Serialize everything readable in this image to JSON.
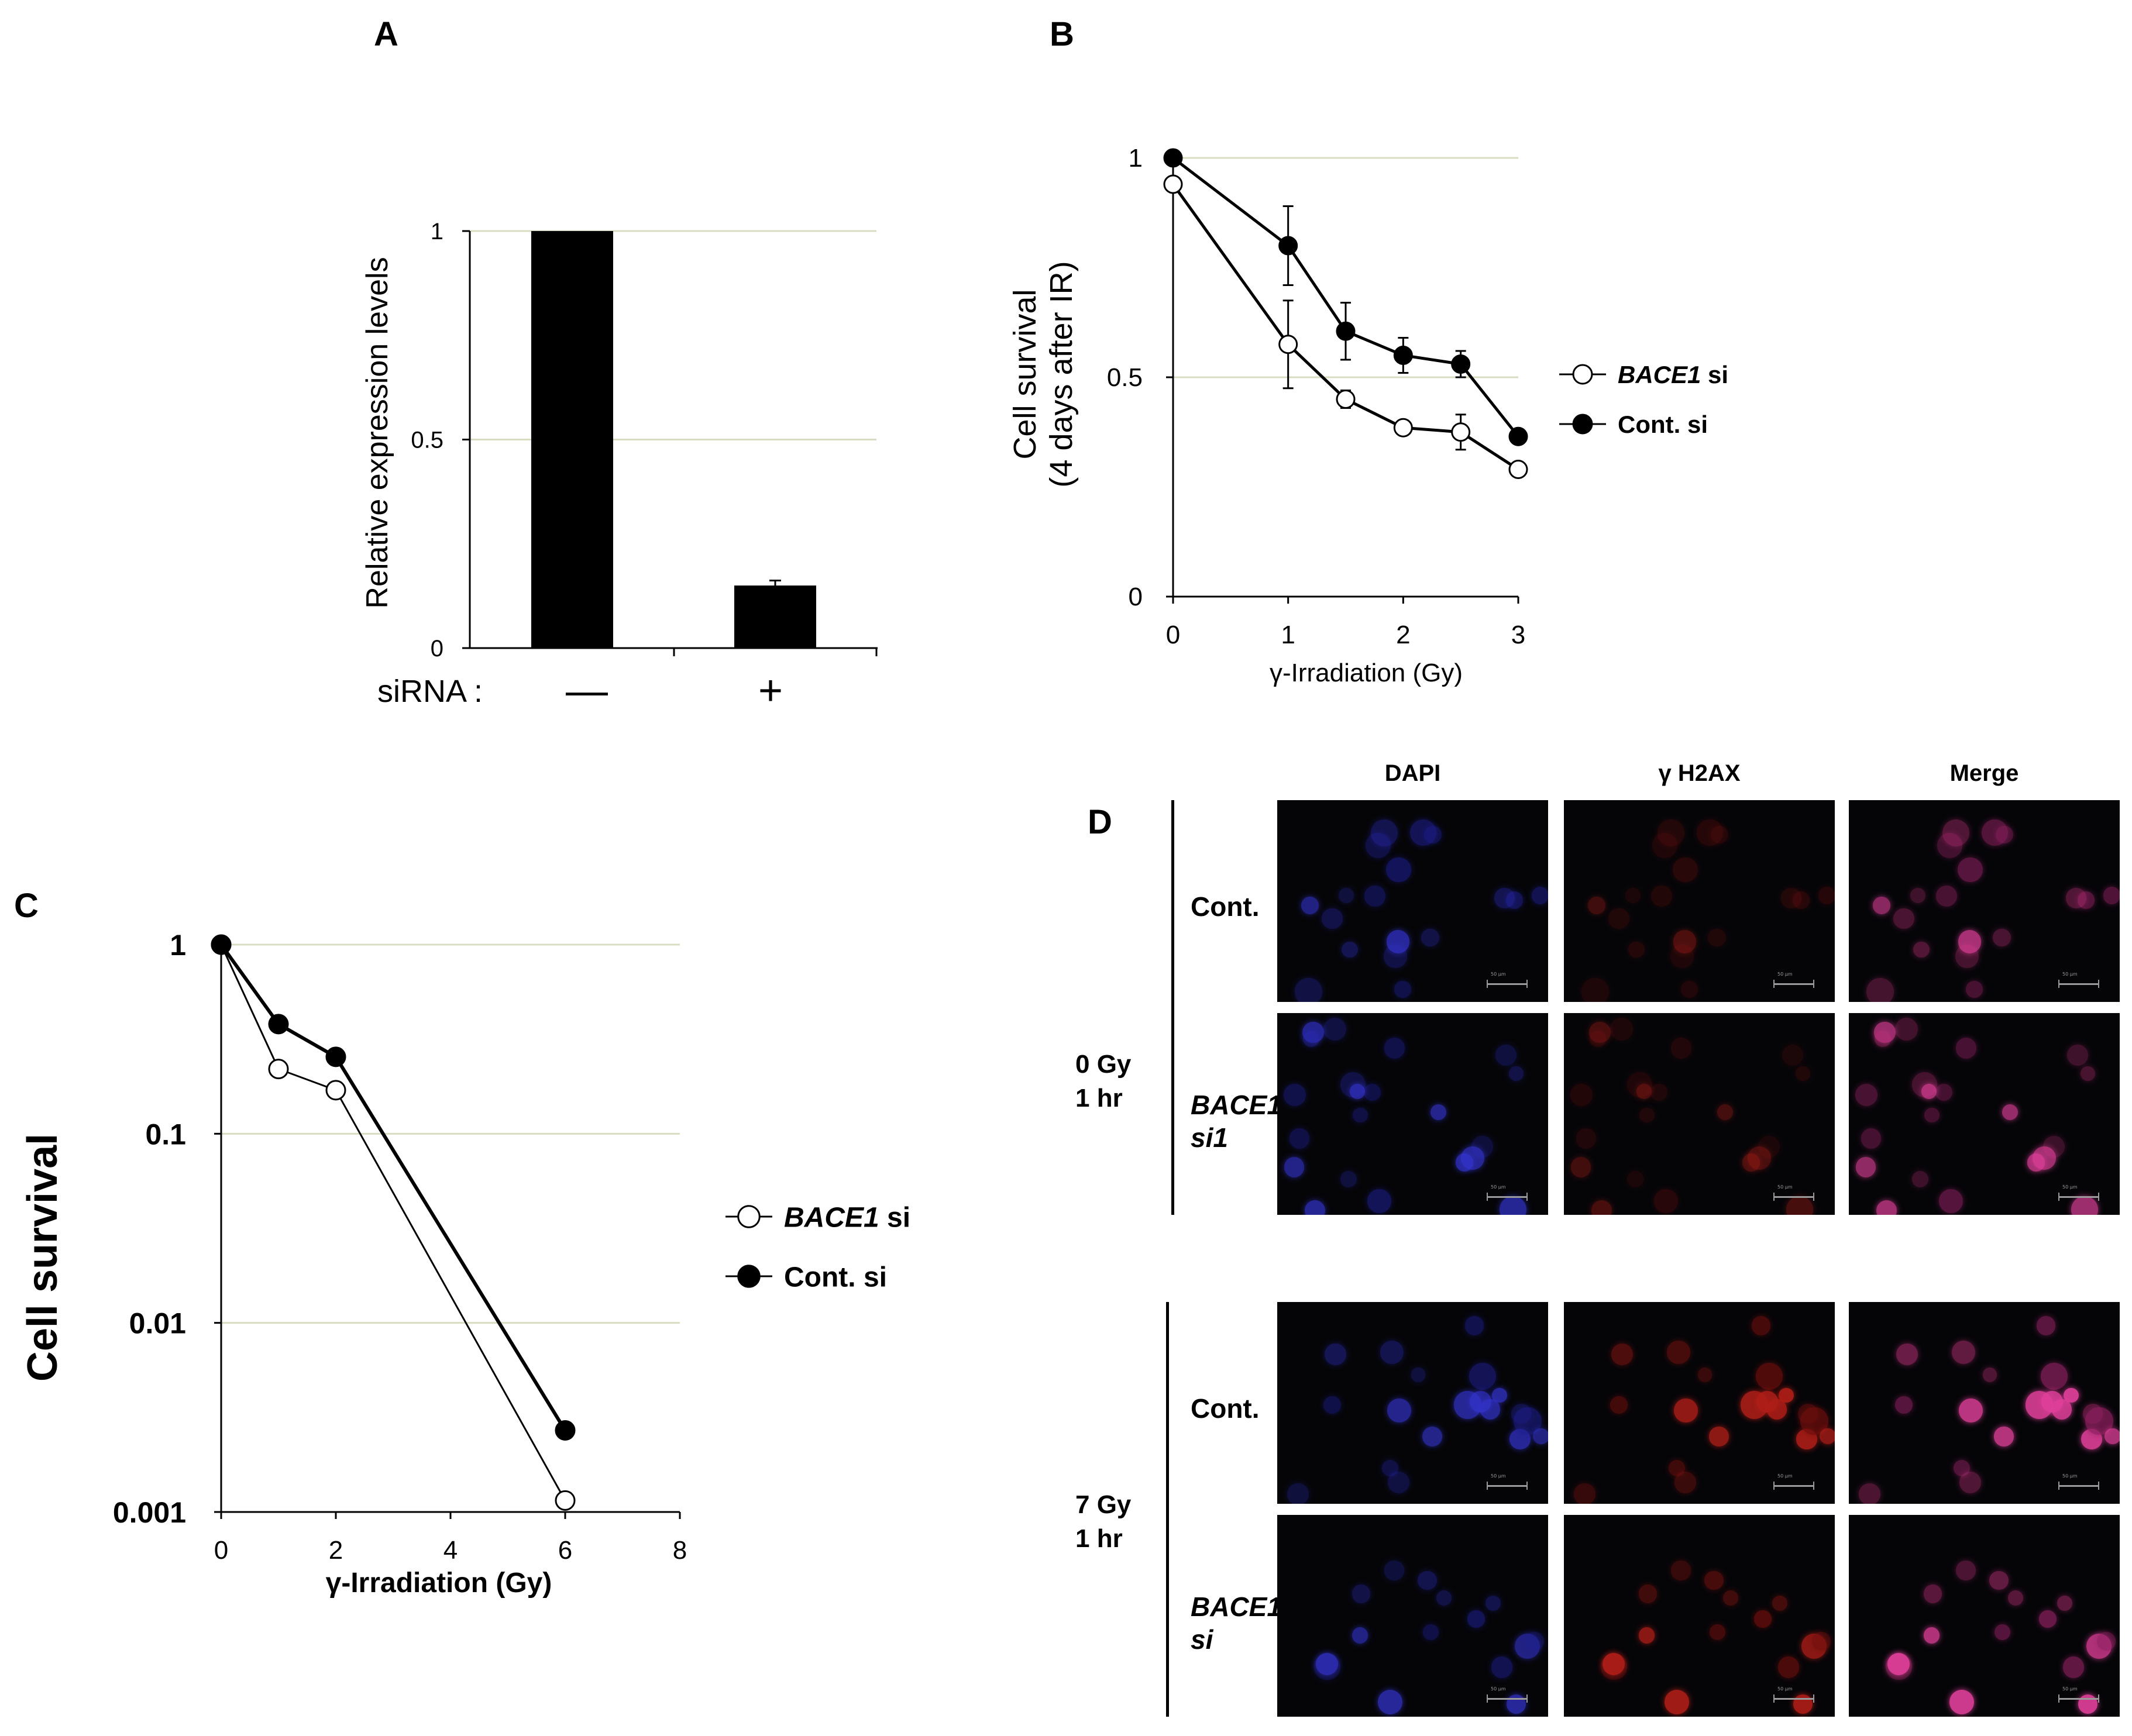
{
  "panels": {
    "A": {
      "letter": "A"
    },
    "B": {
      "letter": "B"
    },
    "C": {
      "letter": "C"
    },
    "D": {
      "letter": "D"
    }
  },
  "chart_data": [
    {
      "panel": "A",
      "type": "bar",
      "categories": [
        "—",
        "+"
      ],
      "category_prefix": "siRNA :",
      "values": [
        1.0,
        0.15
      ],
      "errors": [
        0,
        0.012
      ],
      "ylabel": "Relative expression levels",
      "yticks": [
        "0",
        "0.5",
        "1"
      ],
      "ylim": [
        0,
        1
      ],
      "grid": true,
      "colors": {
        "bar": "#000000",
        "grid": "#d9dcc0"
      }
    },
    {
      "panel": "B",
      "type": "line",
      "xlabel": "γ-Irradiation (Gy)",
      "ylabel_line1": "Cell survival",
      "ylabel_line2": "(4 days after IR)",
      "xticks": [
        "0",
        "1",
        "2",
        "3"
      ],
      "yticks": [
        "0",
        "0.5",
        "1"
      ],
      "xlim": [
        0,
        3
      ],
      "ylim": [
        0,
        1
      ],
      "grid": true,
      "legend_position": "right",
      "series": [
        {
          "name_italic": "BACE1",
          "name_rest": " si",
          "marker": "open",
          "x": [
            0,
            1,
            1.5,
            2,
            2.5,
            3
          ],
          "y": [
            0.94,
            0.575,
            0.45,
            0.385,
            0.375,
            0.29
          ],
          "err": [
            0,
            0.1,
            0.02,
            0,
            0.04,
            0
          ]
        },
        {
          "name_italic": "",
          "name_rest": "Cont. si",
          "marker": "filled",
          "x": [
            0,
            1,
            1.5,
            2,
            2.5,
            3
          ],
          "y": [
            1.0,
            0.8,
            0.605,
            0.55,
            0.53,
            0.365
          ],
          "err": [
            0,
            0.09,
            0.065,
            0.04,
            0.03,
            0
          ]
        }
      ]
    },
    {
      "panel": "C",
      "type": "line",
      "xlabel": "γ-Irradiation (Gy)",
      "ylabel": "Cell survival",
      "xticks": [
        "0",
        "2",
        "4",
        "6",
        "8"
      ],
      "yticks": [
        "0.001",
        "0.01",
        "0.1",
        "1"
      ],
      "xlim": [
        0,
        8
      ],
      "ylim": [
        0.001,
        1
      ],
      "yscale": "log",
      "grid": true,
      "legend_position": "right",
      "series": [
        {
          "name_italic": "BACE1",
          "name_rest": " si",
          "marker": "open",
          "x": [
            0,
            1,
            2,
            6
          ],
          "y": [
            1.0,
            0.22,
            0.17,
            0.00115
          ]
        },
        {
          "name_italic": "",
          "name_rest": "Cont. si",
          "marker": "filled",
          "x": [
            0,
            1,
            2,
            6
          ],
          "y": [
            1.0,
            0.38,
            0.255,
            0.0027
          ]
        }
      ]
    }
  ],
  "microscopy": {
    "columns": [
      "DAPI",
      "γ H2AX",
      "Merge"
    ],
    "groups": [
      {
        "line1": "0 Gy",
        "line2": "1 hr",
        "rows": [
          {
            "label": "Cont.",
            "italic": false,
            "label2": ""
          },
          {
            "label": "BACE1",
            "italic": true,
            "label2": "si1"
          }
        ]
      },
      {
        "line1": "7 Gy",
        "line2": "1 hr",
        "rows": [
          {
            "label": "Cont.",
            "italic": false,
            "label2": ""
          },
          {
            "label": "BACE1",
            "italic": true,
            "label2": "si"
          }
        ]
      }
    ],
    "scale_text": "50 μm"
  }
}
